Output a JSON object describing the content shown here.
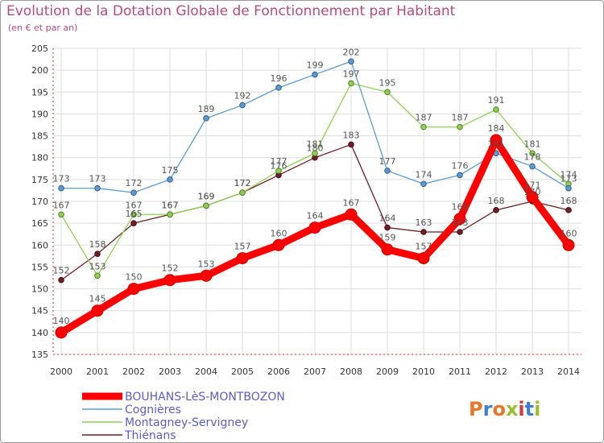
{
  "header": {
    "title": "Evolution de la Dotation Globale de Fonctionnement par Habitant",
    "subtitle": "(en € et par an)"
  },
  "logo": {
    "text": "Proxiti",
    "colors": [
      "#e8752a",
      "#3f7fd0",
      "#e8752a",
      "#9bbf2c",
      "#d63b3b",
      "#3f7fd0",
      "#9bbf2c"
    ]
  },
  "chart_data": {
    "type": "line",
    "x": [
      "2000",
      "2001",
      "2002",
      "2003",
      "2004",
      "2005",
      "2006",
      "2007",
      "2008",
      "2009",
      "2010",
      "2011",
      "2012",
      "2013",
      "2014"
    ],
    "ylim": [
      135,
      205
    ],
    "yticks": [
      135,
      140,
      145,
      150,
      155,
      160,
      165,
      170,
      175,
      180,
      185,
      190,
      195,
      200,
      205
    ],
    "grid": true,
    "legend_position": "bottom-left",
    "series": [
      {
        "name": "Thiénans",
        "color": "#6e1e24",
        "values": [
          152,
          158,
          165,
          167,
          169,
          172,
          176,
          180,
          183,
          164,
          163,
          163,
          168,
          170,
          168
        ]
      },
      {
        "name": "Montagney-Servigney",
        "color": "#8fd14f",
        "values": [
          167,
          153,
          167,
          167,
          169,
          172,
          177,
          181,
          197,
          195,
          187,
          187,
          191,
          181,
          174
        ]
      },
      {
        "name": "Cognières",
        "color": "#5b9bd5",
        "values": [
          173,
          173,
          172,
          175,
          189,
          192,
          196,
          199,
          202,
          177,
          174,
          176,
          181,
          178,
          173
        ]
      },
      {
        "name": "BOUHANS-LèS-MONTBOZON",
        "color": "#ff0000",
        "values": [
          140,
          145,
          150,
          152,
          153,
          157,
          160,
          164,
          167,
          159,
          157,
          166,
          184,
          171,
          160
        ]
      }
    ]
  }
}
